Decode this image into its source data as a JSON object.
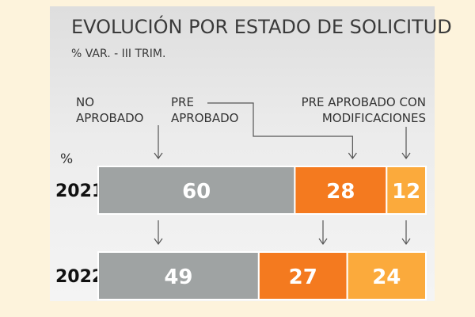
{
  "chart_data": {
    "type": "bar",
    "stacked": true,
    "orientation": "horizontal",
    "title": "EVOLUCIÓN POR ESTADO DE SOLICITUD",
    "subtitle": "% VAR. -  III TRIM.",
    "unit_label": "%",
    "categories": [
      "2021",
      "2022"
    ],
    "series": [
      {
        "name": "NO APROBADO",
        "name_lines": [
          "NO",
          "APROBADO"
        ],
        "color": "#9fa3a3",
        "values": [
          60,
          49
        ]
      },
      {
        "name": "PRE APROBADO",
        "name_lines": [
          "PRE",
          "APROBADO"
        ],
        "color": "#f47a1f",
        "values": [
          28,
          27
        ]
      },
      {
        "name": "PRE APROBADO CON MODIFICACIONES",
        "name_lines": [
          "PRE APROBADO CON",
          "MODIFICACIONES"
        ],
        "color": "#fbaa3c",
        "values": [
          12,
          24
        ]
      }
    ],
    "xlim": [
      0,
      100
    ]
  }
}
